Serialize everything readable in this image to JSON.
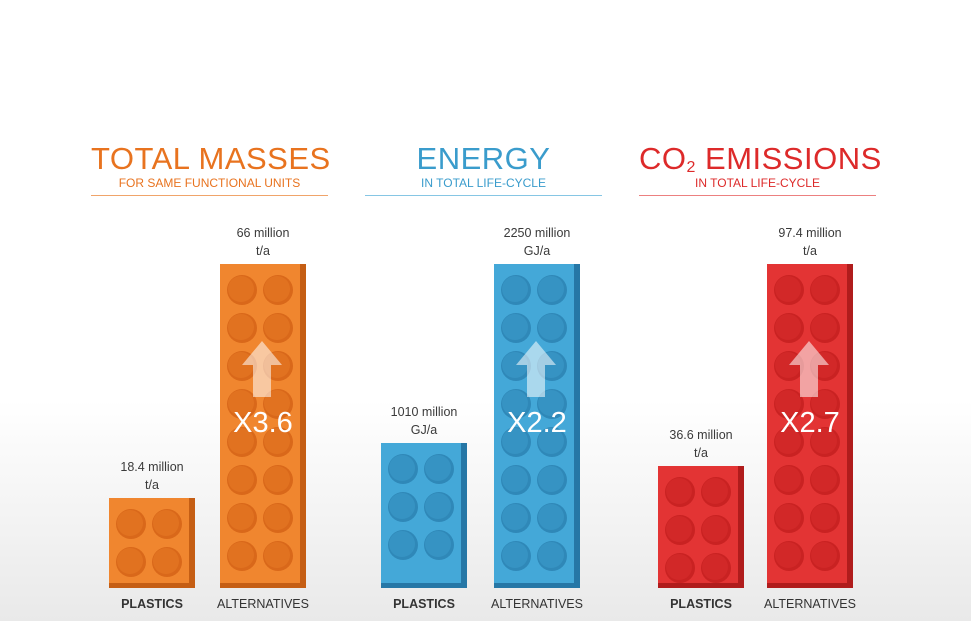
{
  "colors": {
    "orange": "#e8731f",
    "blue": "#3a9ccc",
    "red": "#dd2a2a"
  },
  "chart_data": [
    {
      "type": "bar",
      "title": "TOTAL MASSES",
      "subtitle": "FOR SAME FUNCTIONAL UNITS",
      "categories": [
        "PLASTICS",
        "ALTERNATIVES"
      ],
      "values": [
        18.4,
        66
      ],
      "value_labels": [
        {
          "line1": "18.4 million",
          "line2": "t/a"
        },
        {
          "line1": "66 million",
          "line2": "t/a"
        }
      ],
      "multiplier": "X3.6",
      "color": "#e8731f"
    },
    {
      "type": "bar",
      "title": "ENERGY",
      "subtitle": "IN TOTAL LIFE-CYCLE",
      "categories": [
        "PLASTICS",
        "ALTERNATIVES"
      ],
      "values": [
        1010,
        2250
      ],
      "value_labels": [
        {
          "line1": "1010 million",
          "line2": "GJ/a"
        },
        {
          "line1": "2250 million",
          "line2": "GJ/a"
        }
      ],
      "multiplier": "X2.2",
      "color": "#3a9ccc"
    },
    {
      "type": "bar",
      "title_main": "CO",
      "title_sub": "2",
      "title_rest": " EMISSIONS",
      "subtitle": "IN TOTAL LIFE-CYCLE",
      "categories": [
        "PLASTICS",
        "ALTERNATIVES"
      ],
      "values": [
        36.6,
        97.4
      ],
      "value_labels": [
        {
          "line1": "36.6 million",
          "line2": "t/a"
        },
        {
          "line1": "97.4 million",
          "line2": "t/a"
        }
      ],
      "multiplier": "X2.7",
      "color": "#dd2a2a"
    }
  ]
}
